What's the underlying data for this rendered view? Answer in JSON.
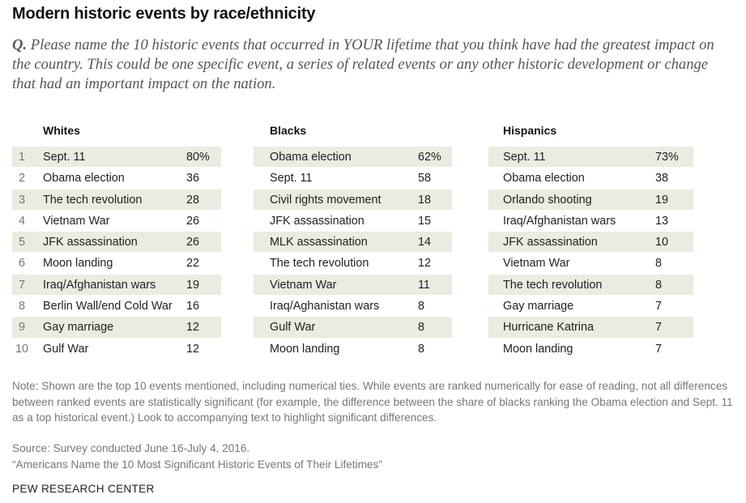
{
  "title": "Modern historic events by race/ethnicity",
  "question": {
    "prefix": "Q.",
    "text": "Please name the 10 historic events that occurred in YOUR lifetime that you think have had the greatest impact on the country. This could be one specific event, a series of related events or any other historic development or change that had an important impact on the nation."
  },
  "chart_data": {
    "type": "table",
    "groups": [
      {
        "name": "Whites",
        "rows": [
          {
            "rank": "1",
            "event": "Sept. 11",
            "value": "80%"
          },
          {
            "rank": "2",
            "event": "Obama election",
            "value": "36"
          },
          {
            "rank": "3",
            "event": "The tech revolution",
            "value": "28"
          },
          {
            "rank": "4",
            "event": "Vietnam War",
            "value": "26"
          },
          {
            "rank": "5",
            "event": "JFK assassination",
            "value": "26"
          },
          {
            "rank": "6",
            "event": "Moon landing",
            "value": "22"
          },
          {
            "rank": "7",
            "event": "Iraq/Afghanistan wars",
            "value": "19"
          },
          {
            "rank": "8",
            "event": "Berlin Wall/end Cold War",
            "value": "16"
          },
          {
            "rank": "9",
            "event": "Gay marriage",
            "value": "12"
          },
          {
            "rank": "10",
            "event": "Gulf War",
            "value": "12"
          }
        ]
      },
      {
        "name": "Blacks",
        "rows": [
          {
            "event": "Obama election",
            "value": "62%"
          },
          {
            "event": "Sept. 11",
            "value": "58"
          },
          {
            "event": "Civil rights movement",
            "value": "18"
          },
          {
            "event": "JFK assassination",
            "value": "15"
          },
          {
            "event": "MLK assassination",
            "value": "14"
          },
          {
            "event": "The tech revolution",
            "value": "12"
          },
          {
            "event": "Vietnam War",
            "value": "11"
          },
          {
            "event": "Iraq/Aghanistan wars",
            "value": "8"
          },
          {
            "event": "Gulf War",
            "value": "8"
          },
          {
            "event": "Moon landing",
            "value": "8"
          }
        ]
      },
      {
        "name": "Hispanics",
        "rows": [
          {
            "event": "Sept. 11",
            "value": "73%"
          },
          {
            "event": "Obama election",
            "value": "38"
          },
          {
            "event": "Orlando shooting",
            "value": "19"
          },
          {
            "event": "Iraq/Afghanistan wars",
            "value": "13"
          },
          {
            "event": "JFK assassination",
            "value": "10"
          },
          {
            "event": "Vietnam War",
            "value": "8"
          },
          {
            "event": "The tech revolution",
            "value": "8"
          },
          {
            "event": "Gay marriage",
            "value": "7"
          },
          {
            "event": "Hurricane Katrina",
            "value": "7"
          },
          {
            "event": "Moon landing",
            "value": "7"
          }
        ]
      }
    ]
  },
  "note": "Note: Shown are the top 10 events mentioned, including numerical ties. While events are ranked numerically for ease of reading, not all differences between ranked events are statistically significant (for example, the difference between the share of blacks ranking the Obama election and Sept. 11 as a top historical event.) Look to accompanying text to highlight significant differences.",
  "source": "Source: Survey conducted June 16-July 4, 2016.",
  "report": "“Americans Name the 10 Most Significant Historic Events of Their Lifetimes”",
  "brand": "PEW RESEARCH CENTER",
  "colors": {
    "row_shade": "#ebebe1",
    "text": "#222222",
    "muted": "#777777"
  }
}
